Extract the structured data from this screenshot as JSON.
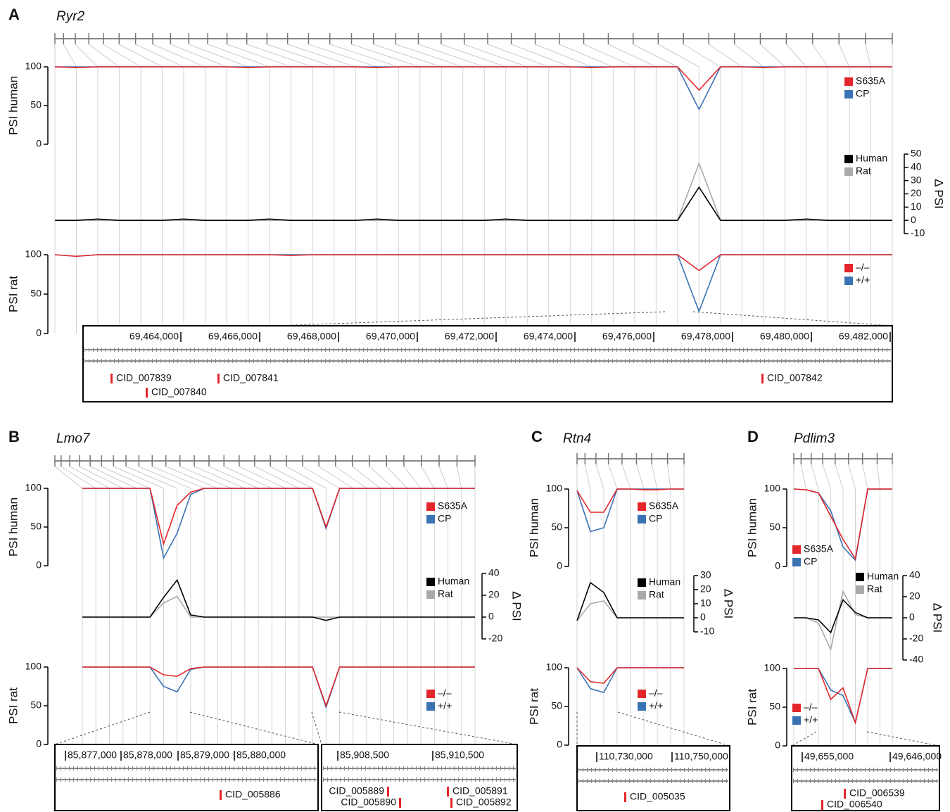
{
  "panels": [
    {
      "label": "A",
      "gene": "Ryr2",
      "zoom": [
        {
          "coordinates": [
            "69,464,000",
            "69,466,000",
            "69,468,000",
            "69,470,000",
            "69,472,000",
            "69,474,000",
            "69,476,000",
            "69,478,000",
            "69,480,000",
            "69,482,000"
          ],
          "cids": [
            "CID_007839",
            "CID_007840",
            "CID_007841",
            "CID_007842"
          ]
        }
      ]
    },
    {
      "label": "B",
      "gene": "Lmo7",
      "zoom": [
        {
          "coordinates": [
            "85,877,000",
            "85,878,000",
            "85,879,000",
            "85,880,000"
          ],
          "cids": [
            "CID_005886"
          ]
        },
        {
          "coordinates": [
            "85,908,500",
            "85,910,500"
          ],
          "cids": [
            "CID_005889",
            "CID_005890",
            "CID_005891",
            "CID_005892"
          ]
        }
      ]
    },
    {
      "label": "C",
      "gene": "Rtn4",
      "zoom": [
        {
          "coordinates": [
            "110,730,000",
            "110,750,000"
          ],
          "cids": [
            "CID_005035"
          ]
        }
      ]
    },
    {
      "label": "D",
      "gene": "Pdlim3",
      "zoom": [
        {
          "coordinates": [
            "49,655,000",
            "49,646,000"
          ],
          "cids": [
            "CID_006539",
            "CID_006540"
          ]
        }
      ]
    }
  ],
  "chart_data": [
    {
      "type": "line",
      "ylabel": "PSI human",
      "ylim": [
        0,
        100
      ],
      "yticks": [
        0,
        50,
        100
      ],
      "categories": [
        null,
        null,
        null,
        null,
        null,
        null,
        null,
        null,
        null,
        null,
        null,
        null,
        null,
        null,
        null,
        null,
        null,
        null,
        null,
        null,
        null,
        null,
        null,
        null,
        null,
        null,
        null,
        null,
        null,
        null,
        null,
        null,
        null,
        null,
        null,
        null,
        null,
        null,
        null,
        null
      ],
      "series": [
        {
          "name": "S635A",
          "color": "#e3262b",
          "values": [
            100,
            99,
            100,
            100,
            100,
            100,
            100,
            100,
            100,
            99,
            100,
            100,
            100,
            100,
            100,
            99,
            100,
            100,
            100,
            100,
            100,
            100,
            100,
            100,
            100,
            99,
            100,
            100,
            100,
            100,
            70,
            100,
            100,
            99,
            100,
            100,
            100,
            100,
            100,
            100
          ]
        },
        {
          "name": "CP",
          "color": "#3a72b4",
          "values": [
            100,
            100,
            100,
            100,
            100,
            100,
            100,
            100,
            100,
            100,
            100,
            100,
            100,
            100,
            100,
            100,
            100,
            100,
            100,
            100,
            100,
            100,
            100,
            100,
            100,
            100,
            100,
            100,
            100,
            100,
            45,
            100,
            100,
            100,
            100,
            100,
            100,
            100,
            100,
            100
          ]
        }
      ]
    },
    {
      "type": "line",
      "ylabel": "Δ PSI",
      "ylim": [
        -10,
        50
      ],
      "yticks": [
        -10,
        0,
        10,
        20,
        30,
        40,
        50
      ],
      "categories": [
        null,
        null,
        null,
        null,
        null,
        null,
        null,
        null,
        null,
        null,
        null,
        null,
        null,
        null,
        null,
        null,
        null,
        null,
        null,
        null,
        null,
        null,
        null,
        null,
        null,
        null,
        null,
        null,
        null,
        null,
        null,
        null,
        null,
        null,
        null,
        null,
        null,
        null,
        null,
        null
      ],
      "series": [
        {
          "name": "Human",
          "color": "#000000",
          "values": [
            0,
            0,
            1,
            0,
            0,
            0,
            1,
            0,
            0,
            0,
            1,
            0,
            0,
            0,
            0,
            1,
            0,
            0,
            0,
            0,
            0,
            1,
            0,
            0,
            0,
            0,
            0,
            0,
            0,
            0,
            25,
            0,
            0,
            0,
            0,
            1,
            0,
            0,
            0,
            0
          ]
        },
        {
          "name": "Rat",
          "color": "#aaaaaa",
          "values": [
            0,
            0,
            0,
            0,
            0,
            0,
            0,
            0,
            0,
            0,
            0,
            0,
            0,
            0,
            0,
            0,
            0,
            0,
            0,
            0,
            0,
            0,
            0,
            0,
            0,
            0,
            0,
            0,
            0,
            0,
            43,
            0,
            0,
            0,
            0,
            0,
            0,
            0,
            0,
            0
          ]
        }
      ]
    },
    {
      "type": "line",
      "ylabel": "PSI rat",
      "ylim": [
        0,
        100
      ],
      "yticks": [
        0,
        50,
        100
      ],
      "categories": [
        null,
        null,
        null,
        null,
        null,
        null,
        null,
        null,
        null,
        null,
        null,
        null,
        null,
        null,
        null,
        null,
        null,
        null,
        null,
        null,
        null,
        null,
        null,
        null,
        null,
        null,
        null,
        null,
        null,
        null,
        null,
        null,
        null,
        null,
        null,
        null,
        null,
        null,
        null,
        null
      ],
      "series": [
        {
          "name": "–/–",
          "color": "#e3262b",
          "values": [
            100,
            98,
            100,
            100,
            100,
            100,
            100,
            100,
            100,
            100,
            100,
            99,
            100,
            100,
            100,
            100,
            100,
            100,
            100,
            100,
            100,
            100,
            100,
            100,
            100,
            100,
            100,
            100,
            100,
            100,
            80,
            100,
            100,
            100,
            100,
            100,
            100,
            100,
            100,
            100
          ]
        },
        {
          "name": "+/+",
          "color": "#3a72b4",
          "values": [
            100,
            98,
            100,
            100,
            100,
            100,
            100,
            100,
            100,
            100,
            100,
            100,
            100,
            100,
            100,
            100,
            100,
            100,
            100,
            100,
            100,
            100,
            100,
            100,
            100,
            100,
            100,
            100,
            100,
            100,
            28,
            100,
            100,
            100,
            100,
            100,
            100,
            100,
            100,
            100
          ]
        }
      ]
    },
    {
      "type": "line",
      "ylabel": "PSI human",
      "ylim": [
        0,
        100
      ],
      "yticks": [
        0,
        50,
        100
      ],
      "categories": [
        null,
        null,
        null,
        null,
        null,
        null,
        null,
        null,
        null,
        null,
        null,
        null,
        null,
        null,
        null,
        null,
        null,
        null,
        null,
        null,
        null,
        null,
        null,
        null,
        null,
        null,
        null,
        null,
        null,
        null
      ],
      "series": [
        {
          "name": "S635A",
          "color": "#e3262b",
          "values": [
            100,
            100,
            100,
            100,
            100,
            100,
            28,
            78,
            95,
            100,
            100,
            100,
            100,
            100,
            100,
            100,
            100,
            100,
            50,
            100,
            100,
            100,
            100,
            100,
            100,
            100,
            100,
            100,
            100,
            100
          ]
        },
        {
          "name": "CP",
          "color": "#3a72b4",
          "values": [
            100,
            100,
            100,
            100,
            100,
            100,
            10,
            42,
            92,
            100,
            100,
            100,
            100,
            100,
            100,
            100,
            100,
            100,
            48,
            100,
            100,
            100,
            100,
            100,
            100,
            100,
            100,
            100,
            100,
            100
          ]
        }
      ]
    },
    {
      "type": "line",
      "ylabel": "Δ PSI",
      "ylim": [
        -20,
        40
      ],
      "yticks": [
        -20,
        0,
        20,
        40
      ],
      "categories": [
        null,
        null,
        null,
        null,
        null,
        null,
        null,
        null,
        null,
        null,
        null,
        null,
        null,
        null,
        null,
        null,
        null,
        null,
        null,
        null,
        null,
        null,
        null,
        null,
        null,
        null,
        null,
        null,
        null,
        null
      ],
      "series": [
        {
          "name": "Human",
          "color": "#000000",
          "values": [
            0,
            0,
            0,
            0,
            0,
            0,
            18,
            34,
            2,
            0,
            0,
            0,
            0,
            0,
            0,
            0,
            0,
            0,
            -3,
            0,
            0,
            0,
            0,
            0,
            0,
            0,
            0,
            0,
            0,
            0
          ]
        },
        {
          "name": "Rat",
          "color": "#aaaaaa",
          "values": [
            0,
            0,
            0,
            0,
            0,
            0,
            13,
            19,
            0,
            0,
            0,
            0,
            0,
            0,
            0,
            0,
            0,
            0,
            0,
            0,
            0,
            0,
            0,
            0,
            0,
            0,
            0,
            0,
            0,
            0
          ]
        }
      ]
    },
    {
      "type": "line",
      "ylabel": "PSI rat",
      "ylim": [
        0,
        100
      ],
      "yticks": [
        0,
        50,
        100
      ],
      "categories": [
        null,
        null,
        null,
        null,
        null,
        null,
        null,
        null,
        null,
        null,
        null,
        null,
        null,
        null,
        null,
        null,
        null,
        null,
        null,
        null,
        null,
        null,
        null,
        null,
        null,
        null,
        null,
        null,
        null,
        null
      ],
      "series": [
        {
          "name": "–/–",
          "color": "#e3262b",
          "values": [
            100,
            100,
            100,
            100,
            100,
            100,
            90,
            88,
            98,
            100,
            100,
            100,
            100,
            100,
            100,
            100,
            100,
            100,
            50,
            100,
            100,
            100,
            100,
            100,
            100,
            100,
            100,
            100,
            100,
            100
          ]
        },
        {
          "name": "+/+",
          "color": "#3a72b4",
          "values": [
            100,
            100,
            100,
            100,
            100,
            100,
            75,
            68,
            97,
            100,
            100,
            100,
            100,
            100,
            100,
            100,
            100,
            100,
            48,
            100,
            100,
            100,
            100,
            100,
            100,
            100,
            100,
            100,
            100,
            100
          ]
        }
      ]
    },
    {
      "type": "line",
      "ylabel": "PSI human",
      "ylim": [
        0,
        100
      ],
      "yticks": [
        0,
        50,
        100
      ],
      "categories": [
        null,
        null,
        null,
        null,
        null,
        null,
        null,
        null,
        null
      ],
      "series": [
        {
          "name": "S635A",
          "color": "#e3262b",
          "values": [
            98,
            70,
            70,
            100,
            100,
            99,
            99,
            100,
            100
          ]
        },
        {
          "name": "CP",
          "color": "#3a72b4",
          "values": [
            98,
            45,
            50,
            100,
            100,
            100,
            100,
            100,
            100
          ]
        }
      ]
    },
    {
      "type": "line",
      "ylabel": "Δ PSI",
      "ylim": [
        -10,
        30
      ],
      "yticks": [
        -10,
        0,
        10,
        20,
        30
      ],
      "categories": [
        null,
        null,
        null,
        null,
        null,
        null,
        null,
        null,
        null
      ],
      "series": [
        {
          "name": "Human",
          "color": "#000000",
          "values": [
            -2,
            25,
            18,
            0,
            0,
            0,
            0,
            0,
            0
          ]
        },
        {
          "name": "Rat",
          "color": "#aaaaaa",
          "values": [
            -2,
            10,
            12,
            0,
            0,
            0,
            0,
            0,
            0
          ]
        }
      ]
    },
    {
      "type": "line",
      "ylabel": "PSI rat",
      "ylim": [
        0,
        100
      ],
      "yticks": [
        0,
        50,
        100
      ],
      "categories": [
        null,
        null,
        null,
        null,
        null,
        null,
        null,
        null,
        null
      ],
      "series": [
        {
          "name": "–/–",
          "color": "#e3262b",
          "values": [
            100,
            82,
            80,
            100,
            100,
            100,
            100,
            100,
            100
          ]
        },
        {
          "name": "+/+",
          "color": "#3a72b4",
          "values": [
            100,
            73,
            68,
            100,
            100,
            100,
            100,
            100,
            100
          ]
        }
      ]
    },
    {
      "type": "line",
      "ylabel": "PSI human",
      "ylim": [
        0,
        100
      ],
      "yticks": [
        0,
        50,
        100
      ],
      "categories": [
        null,
        null,
        null,
        null,
        null,
        null,
        null,
        null,
        null
      ],
      "series": [
        {
          "name": "S635A",
          "color": "#e3262b",
          "values": [
            100,
            99,
            95,
            65,
            35,
            10,
            100,
            100,
            100
          ]
        },
        {
          "name": "CP",
          "color": "#3a72b4",
          "values": [
            100,
            99,
            95,
            72,
            25,
            8,
            100,
            100,
            100
          ]
        }
      ]
    },
    {
      "type": "line",
      "ylabel": "Δ PSI",
      "ylim": [
        -40,
        40
      ],
      "yticks": [
        -40,
        -20,
        0,
        20,
        40
      ],
      "categories": [
        null,
        null,
        null,
        null,
        null,
        null,
        null,
        null,
        null
      ],
      "series": [
        {
          "name": "Human",
          "color": "#000000",
          "values": [
            0,
            0,
            -2,
            -14,
            17,
            5,
            0,
            0,
            0
          ]
        },
        {
          "name": "Rat",
          "color": "#aaaaaa",
          "values": [
            0,
            0,
            -5,
            -30,
            25,
            3,
            0,
            0,
            0
          ]
        }
      ]
    },
    {
      "type": "line",
      "ylabel": "PSI rat",
      "ylim": [
        0,
        100
      ],
      "yticks": [
        0,
        50,
        100
      ],
      "categories": [
        null,
        null,
        null,
        null,
        null,
        null,
        null,
        null,
        null
      ],
      "series": [
        {
          "name": "–/–",
          "color": "#e3262b",
          "values": [
            100,
            100,
            100,
            60,
            75,
            30,
            100,
            100,
            100
          ]
        },
        {
          "name": "+/+",
          "color": "#3a72b4",
          "values": [
            100,
            100,
            100,
            72,
            65,
            30,
            100,
            100,
            100
          ]
        }
      ]
    }
  ]
}
